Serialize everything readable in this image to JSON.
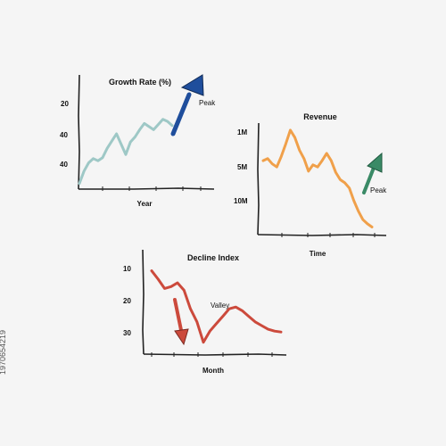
{
  "stock_id": "1970654219",
  "colors": {
    "background": "#f5f5f5",
    "axis": "#222222",
    "growth_line": "#9ec8c6",
    "growth_arrow": "#1f4e9c",
    "revenue_line": "#f0a04a",
    "revenue_arrow": "#3a8a66",
    "decline_line": "#cc4a3c",
    "decline_arrow": "#cc4a3c"
  },
  "chart_data": [
    {
      "type": "line",
      "title": "Growth Rate (%)",
      "xlabel": "Year",
      "ylabel": "",
      "yticks": [
        "20",
        "40",
        "40"
      ],
      "x": [
        0,
        1,
        2,
        3,
        4,
        5,
        6,
        7,
        8,
        9,
        10,
        11,
        12,
        13,
        14,
        15,
        16,
        17,
        18,
        19,
        20
      ],
      "values": [
        2,
        14,
        22,
        26,
        24,
        27,
        36,
        43,
        50,
        40,
        30,
        42,
        47,
        54,
        60,
        57,
        54,
        59,
        64,
        62,
        58
      ],
      "ylim": [
        0,
        100
      ],
      "annotation": {
        "text": "Peak",
        "arrow": "up-right"
      }
    },
    {
      "type": "line",
      "title": "Revenue",
      "xlabel": "Time",
      "ylabel": "",
      "yticks": [
        "1M",
        "5M",
        "10M"
      ],
      "x": [
        0,
        1,
        2,
        3,
        4,
        5,
        6,
        7,
        8,
        9,
        10,
        11,
        12,
        13,
        14,
        15,
        16,
        17,
        18,
        19,
        20,
        21,
        22,
        23,
        24
      ],
      "values": [
        66,
        68,
        63,
        60,
        70,
        82,
        95,
        88,
        76,
        68,
        56,
        62,
        60,
        66,
        73,
        66,
        55,
        48,
        45,
        40,
        28,
        18,
        10,
        6,
        3
      ],
      "ylim": [
        0,
        100
      ],
      "annotation": {
        "text": "Peak",
        "arrow": "up-right"
      }
    },
    {
      "type": "line",
      "title": "Decline Index",
      "xlabel": "Month",
      "ylabel": "",
      "yticks": [
        "10",
        "20",
        "30"
      ],
      "x": [
        0,
        1,
        2,
        3,
        4,
        5,
        6,
        7,
        8,
        9,
        10,
        11,
        12,
        13,
        14,
        15,
        16,
        17,
        18,
        19,
        20
      ],
      "values": [
        85,
        76,
        66,
        68,
        72,
        64,
        44,
        30,
        8,
        20,
        28,
        36,
        44,
        46,
        42,
        36,
        30,
        26,
        22,
        20,
        19
      ],
      "ylim": [
        0,
        100
      ],
      "annotation": {
        "text": "Valley",
        "arrow": "down"
      }
    }
  ]
}
